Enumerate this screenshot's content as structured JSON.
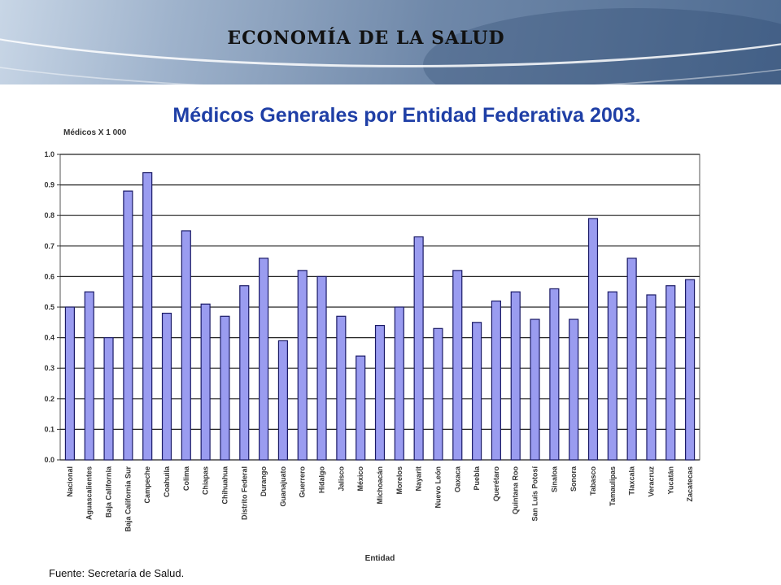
{
  "header": {
    "title": "ECONOMÍA DE LA SALUD"
  },
  "source": "Fuente: Secretaría de Salud.",
  "colors": {
    "bar_fill": "#9a9cf0",
    "bar_stroke": "#1a1a66",
    "grid": "#222222"
  },
  "chart_data": {
    "type": "bar",
    "title": "Médicos Generales por Entidad Federativa 2003.",
    "ylabel": "Médicos X 1 000",
    "xlabel": "Entidad",
    "ylim": [
      0,
      1.0
    ],
    "yticks": [
      "0.0",
      "0.1",
      "0.2",
      "0.3",
      "0.4",
      "0.5",
      "0.6",
      "0.7",
      "0.8",
      "0.9",
      "1.0"
    ],
    "grid": true,
    "legend": "none",
    "categories": [
      "Nacional",
      "Aguascalientes",
      "Baja California",
      "Baja California Sur",
      "Campeche",
      "Coahuila",
      "Colima",
      "Chiapas",
      "Chihuahua",
      "Distrito Federal",
      "Durango",
      "Guanajuato",
      "Guerrero",
      "Hidalgo",
      "Jalisco",
      "México",
      "Michoacán",
      "Morelos",
      "Nayarit",
      "Nuevo León",
      "Oaxaca",
      "Puebla",
      "Querétaro",
      "Quintana Roo",
      "San Luis Potosí",
      "Sinaloa",
      "Sonora",
      "Tabasco",
      "Tamaulipas",
      "Tlaxcala",
      "Veracruz",
      "Yucatán",
      "Zacatecas"
    ],
    "values": [
      0.5,
      0.55,
      0.4,
      0.88,
      0.94,
      0.48,
      0.75,
      0.51,
      0.47,
      0.57,
      0.66,
      0.39,
      0.62,
      0.6,
      0.47,
      0.34,
      0.44,
      0.5,
      0.73,
      0.43,
      0.62,
      0.45,
      0.52,
      0.55,
      0.46,
      0.56,
      0.46,
      0.79,
      0.55,
      0.66,
      0.54,
      0.57,
      0.59
    ]
  }
}
